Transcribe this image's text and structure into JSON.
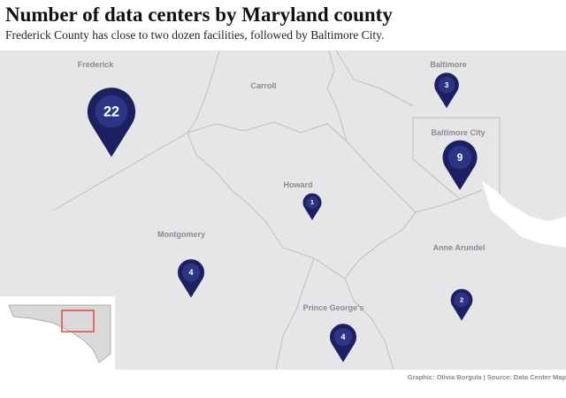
{
  "title": "Number of data centers by Maryland county",
  "subtitle": "Frederick County has close to two dozen facilities, followed by Baltimore City.",
  "markers": [
    {
      "county": "Frederick",
      "count": 22
    },
    {
      "county": "Baltimore",
      "count": 3
    },
    {
      "county": "Baltimore City",
      "count": 9
    },
    {
      "county": "Howard",
      "count": 1
    },
    {
      "county": "Montgomery",
      "count": 4
    },
    {
      "county": "Anne Arundel",
      "count": 2
    },
    {
      "county": "Prince George's",
      "count": 4
    }
  ],
  "other_labels": [
    "Carroll"
  ],
  "credit": "Graphic: Olivia Borgula | Source: Data Center Map"
}
